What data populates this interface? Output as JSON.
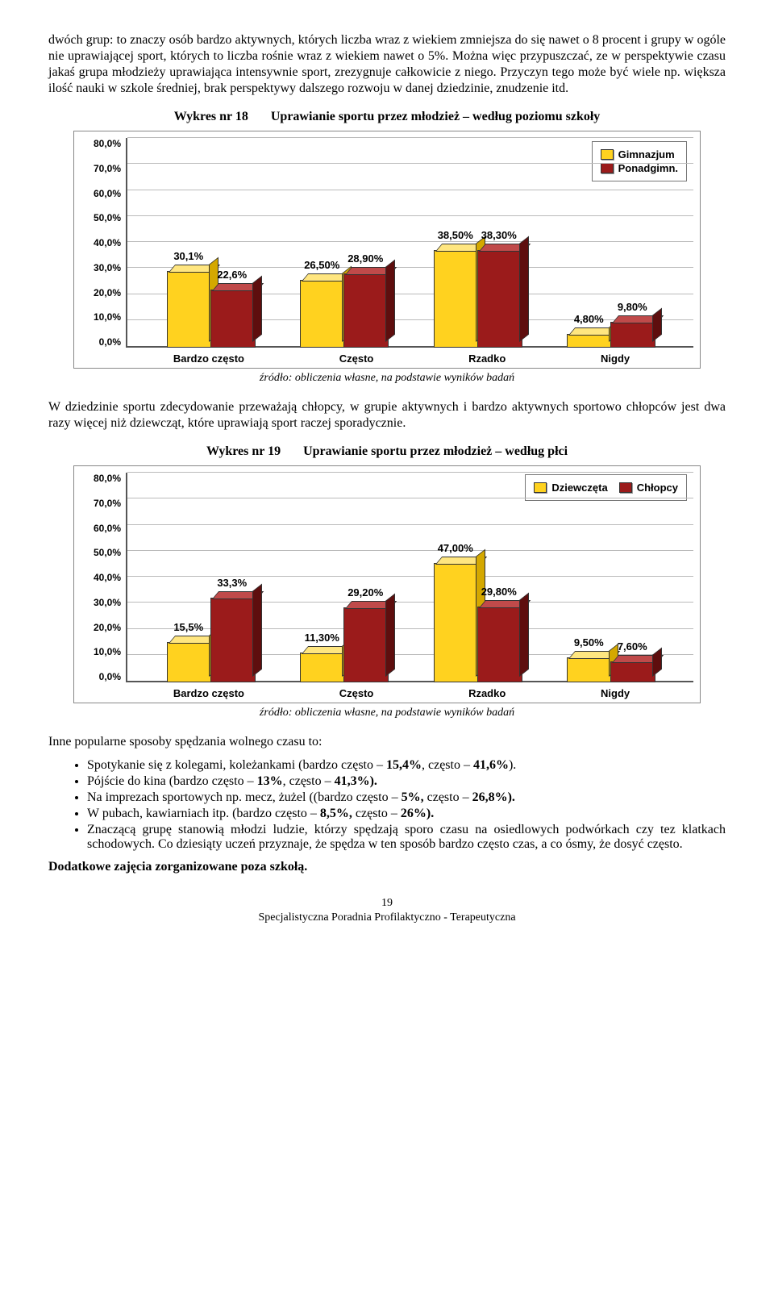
{
  "para1": "dwóch grup: to znaczy osób bardzo aktywnych, których liczba wraz z wiekiem zmniejsza do się nawet o 8 procent i grupy w ogóle nie uprawiającej sport, których to liczba rośnie wraz z wiekiem nawet o 5%. Można więc przypuszczać, ze w perspektywie czasu jakaś grupa młodzieży uprawiająca intensywnie sport, zrezygnuje całkowicie z niego. Przyczyn tego może być wiele np. większa ilość nauki w szkole średniej, brak perspektywy dalszego rozwoju w danej dziedzinie, znudzenie itd.",
  "chart18": {
    "label": "Wykres nr 18",
    "title": "Uprawianie sportu przez młodzież – według poziomu szkoły",
    "type": "bar",
    "ylim": [
      0,
      80
    ],
    "ytick_step": 10,
    "yticks": [
      "0,0%",
      "10,0%",
      "20,0%",
      "30,0%",
      "40,0%",
      "50,0%",
      "60,0%",
      "70,0%",
      "80,0%"
    ],
    "categories": [
      "Bardzo często",
      "Często",
      "Rzadko",
      "Nigdy"
    ],
    "series": [
      {
        "name": "Gimnazjum",
        "color": "#ffd21f",
        "color_top": "#ffe680",
        "color_side": "#d4a800",
        "values": [
          30.1,
          26.5,
          38.5,
          4.8
        ],
        "labels": [
          "30,1%",
          "26,50%",
          "38,50%",
          "4,80%"
        ]
      },
      {
        "name": "Ponadgimn.",
        "color": "#9b1b1b",
        "color_top": "#c04a4a",
        "color_side": "#5e0e0e",
        "values": [
          22.6,
          28.9,
          38.3,
          9.8
        ],
        "labels": [
          "22,6%",
          "28,90%",
          "38,30%",
          "9,80%"
        ]
      }
    ],
    "legend_bg": "#ffffff",
    "grid_color": "#bbbbbb",
    "background_color": "#ffffff"
  },
  "source_text": "źródło: obliczenia własne, na podstawie wyników badań",
  "para2": "W dziedzinie sportu zdecydowanie przeważają chłopcy, w grupie aktywnych i bardzo aktywnych sportowo chłopców jest dwa razy więcej niż dziewcząt, które uprawiają sport raczej sporadycznie.",
  "chart19": {
    "label": "Wykres nr 19",
    "title": "Uprawianie sportu przez młodzież – według płci",
    "type": "bar",
    "ylim": [
      0,
      80
    ],
    "ytick_step": 10,
    "yticks": [
      "0,0%",
      "10,0%",
      "20,0%",
      "30,0%",
      "40,0%",
      "50,0%",
      "60,0%",
      "70,0%",
      "80,0%"
    ],
    "categories": [
      "Bardzo często",
      "Często",
      "Rzadko",
      "Nigdy"
    ],
    "series": [
      {
        "name": "Dziewczęta",
        "color": "#ffd21f",
        "color_top": "#ffe680",
        "color_side": "#d4a800",
        "values": [
          15.5,
          11.3,
          47.0,
          9.5
        ],
        "labels": [
          "15,5%",
          "11,30%",
          "47,00%",
          "9,50%"
        ]
      },
      {
        "name": "Chłopcy",
        "color": "#9b1b1b",
        "color_top": "#c04a4a",
        "color_side": "#5e0e0e",
        "values": [
          33.3,
          29.2,
          29.8,
          7.6
        ],
        "labels": [
          "33,3%",
          "29,20%",
          "29,80%",
          "7,60%"
        ]
      }
    ],
    "legend_bg": "#ffffff",
    "grid_color": "#bbbbbb",
    "background_color": "#ffffff"
  },
  "list_intro": "Inne popularne sposoby spędzania wolnego czasu to:",
  "bullets": [
    "Spotykanie się z kolegami, koleżankami (bardzo często – <b>15,4%</b>, często – <b>41,6%</b>).",
    "Pójście do kina (bardzo często – <b>13%</b>, często – <b>41,3%).</b>",
    "Na imprezach sportowych np. mecz, żużel ((bardzo często – <b>5%,</b> często – <b>26,8%).</b>",
    "W pubach, kawiarniach itp. (bardzo często – <b>8,5%,</b> często – <b>26%).</b>",
    "Znaczącą grupę stanowią młodzi ludzie, którzy spędzają sporo czasu na osiedlowych podwórkach czy tez klatkach schodowych. Co dziesiąty uczeń przyznaje, że spędza w ten sposób bardzo często czas, a co ósmy, że dosyć często."
  ],
  "closing": "Dodatkowe zajęcia zorganizowane poza szkołą.",
  "page_number": "19",
  "footer_line": "Specjalistyczna Poradnia Profilaktyczno - Terapeutyczna"
}
